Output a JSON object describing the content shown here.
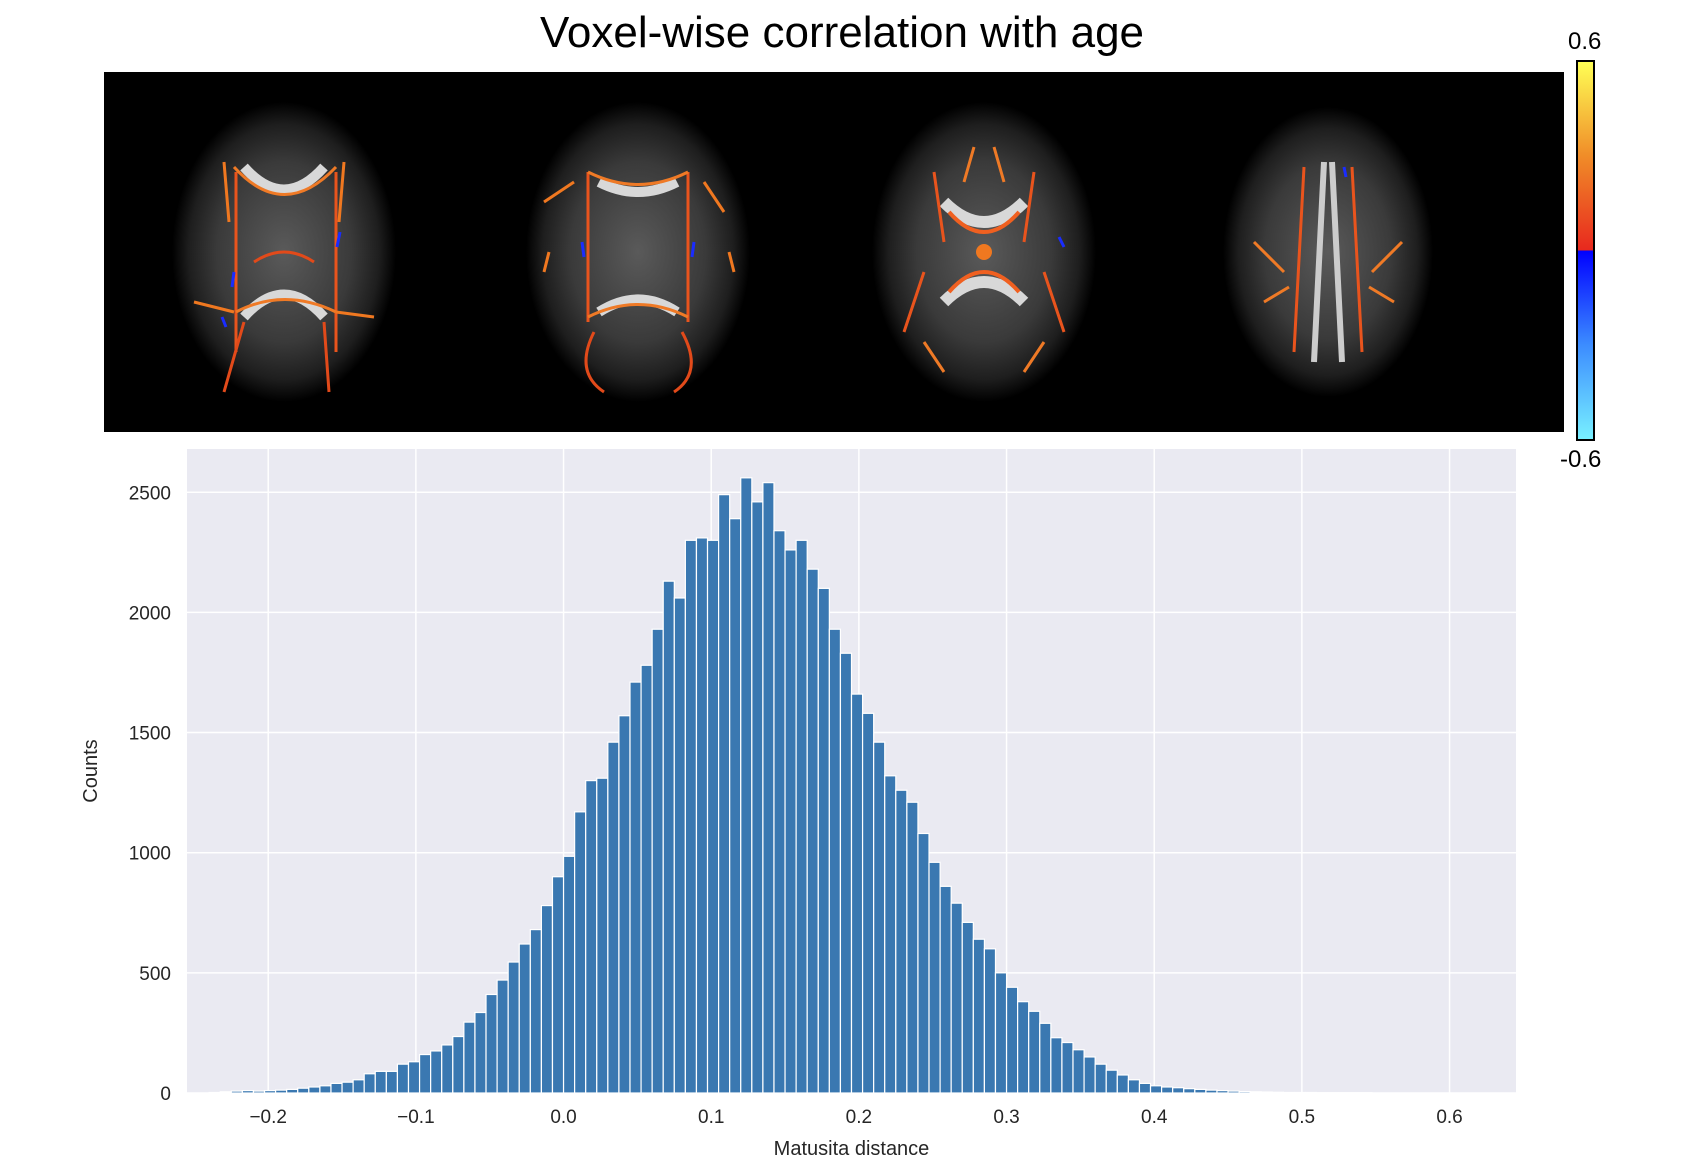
{
  "title": "Voxel-wise correlation with age",
  "brain_panel": {
    "slices": [
      "axial-slice-1",
      "axial-slice-2",
      "axial-slice-3",
      "axial-slice-4"
    ]
  },
  "colorbar": {
    "max_label": "0.6",
    "min_label": "-0.6",
    "colors": [
      "#ffff55",
      "#f08c28",
      "#e8281e",
      "#0000ff",
      "#3c8cff",
      "#78f0ff"
    ]
  },
  "chart_data": {
    "type": "bar",
    "title": "",
    "xlabel": "Matusita distance",
    "ylabel": "Counts",
    "xlim": [
      -0.255,
      0.645
    ],
    "ylim": [
      0,
      2680
    ],
    "xticks": [
      -0.2,
      -0.1,
      0.0,
      0.1,
      0.2,
      0.3,
      0.4,
      0.5,
      0.6
    ],
    "xtick_labels": [
      "−0.2",
      "−0.1",
      "0.0",
      "0.1",
      "0.2",
      "0.3",
      "0.4",
      "0.5",
      "0.6"
    ],
    "yticks": [
      0,
      500,
      1000,
      1500,
      2000,
      2500
    ],
    "ytick_labels": [
      "0",
      "500",
      "1000",
      "1500",
      "2000",
      "2500"
    ],
    "bar_color": "#3a78b1",
    "background_color": "#eaeaf2",
    "grid": true,
    "bin_start": -0.24,
    "bin_width": 0.0075,
    "values": [
      2,
      5,
      8,
      10,
      8,
      10,
      12,
      15,
      20,
      25,
      30,
      40,
      45,
      55,
      80,
      90,
      90,
      120,
      130,
      160,
      175,
      200,
      235,
      295,
      335,
      410,
      470,
      545,
      620,
      680,
      780,
      900,
      985,
      1170,
      1300,
      1310,
      1460,
      1570,
      1710,
      1780,
      1930,
      2130,
      2060,
      2300,
      2310,
      2300,
      2490,
      2390,
      2560,
      2460,
      2540,
      2340,
      2260,
      2300,
      2180,
      2100,
      1930,
      1830,
      1660,
      1580,
      1460,
      1320,
      1260,
      1210,
      1080,
      960,
      860,
      790,
      710,
      640,
      600,
      500,
      440,
      380,
      340,
      290,
      230,
      210,
      180,
      150,
      120,
      95,
      75,
      55,
      40,
      30,
      25,
      22,
      18,
      15,
      12,
      10,
      8,
      6,
      5,
      4,
      3,
      2,
      2,
      2,
      1,
      1,
      1,
      1,
      1
    ]
  }
}
